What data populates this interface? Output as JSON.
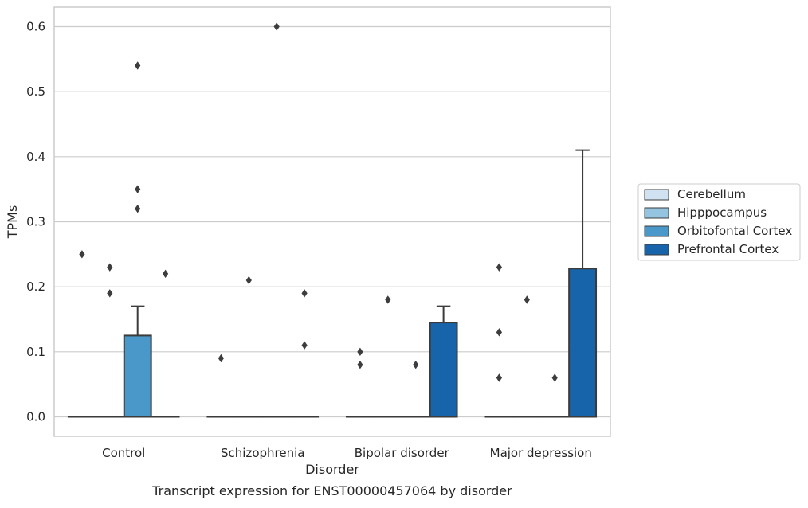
{
  "chart_data": {
    "type": "box",
    "xlabel": "Disorder",
    "ylabel": "TPMs",
    "caption": "Transcript expression for ENST00000457064 by disorder",
    "ylim": [
      -0.03,
      0.63
    ],
    "yticks": [
      0.0,
      0.1,
      0.2,
      0.3,
      0.4,
      0.5,
      0.6
    ],
    "ytick_labels": [
      "0.0",
      "0.1",
      "0.2",
      "0.3",
      "0.4",
      "0.5",
      "0.6"
    ],
    "grid": true,
    "legend_position": "right",
    "categories": [
      "Control",
      "Schizophrenia",
      "Bipolar disorder",
      "Major depression"
    ],
    "series": [
      {
        "name": "Cerebellum",
        "color": "#d0e1f2",
        "boxes": [
          {
            "q1": 0,
            "median": 0,
            "q3": 0,
            "whisker_low": 0,
            "whisker_high": 0,
            "outliers": [
              0.25
            ]
          },
          {
            "q1": 0,
            "median": 0,
            "q3": 0,
            "whisker_low": 0,
            "whisker_high": 0,
            "outliers": [
              0.09
            ]
          },
          {
            "q1": 0,
            "median": 0,
            "q3": 0,
            "whisker_low": 0,
            "whisker_high": 0,
            "outliers": [
              0.1,
              0.08
            ]
          },
          {
            "q1": 0,
            "median": 0,
            "q3": 0,
            "whisker_low": 0,
            "whisker_high": 0,
            "outliers": [
              0.23,
              0.13,
              0.06
            ]
          }
        ]
      },
      {
        "name": "Hipppocampus",
        "color": "#94c4df",
        "boxes": [
          {
            "q1": 0,
            "median": 0,
            "q3": 0,
            "whisker_low": 0,
            "whisker_high": 0,
            "outliers": [
              0.23,
              0.19
            ]
          },
          {
            "q1": 0,
            "median": 0,
            "q3": 0,
            "whisker_low": 0,
            "whisker_high": 0,
            "outliers": [
              0.21
            ]
          },
          {
            "q1": 0,
            "median": 0,
            "q3": 0,
            "whisker_low": 0,
            "whisker_high": 0,
            "outliers": [
              0.18
            ]
          },
          {
            "q1": 0,
            "median": 0,
            "q3": 0,
            "whisker_low": 0,
            "whisker_high": 0,
            "outliers": [
              0.18
            ]
          }
        ]
      },
      {
        "name": "Orbitofontal Cortex",
        "color": "#4a98c9",
        "boxes": [
          {
            "q1": 0,
            "median": 0,
            "q3": 0.125,
            "whisker_low": 0,
            "whisker_high": 0.17,
            "outliers": [
              0.54,
              0.35,
              0.32
            ]
          },
          {
            "q1": 0,
            "median": 0,
            "q3": 0,
            "whisker_low": 0,
            "whisker_high": 0,
            "outliers": [
              0.6
            ]
          },
          {
            "q1": 0,
            "median": 0,
            "q3": 0,
            "whisker_low": 0,
            "whisker_high": 0,
            "outliers": [
              0.08
            ]
          },
          {
            "q1": 0,
            "median": 0,
            "q3": 0,
            "whisker_low": 0,
            "whisker_high": 0,
            "outliers": [
              0.06
            ]
          }
        ]
      },
      {
        "name": "Prefrontal Cortex",
        "color": "#1764ab",
        "boxes": [
          {
            "q1": 0,
            "median": 0,
            "q3": 0,
            "whisker_low": 0,
            "whisker_high": 0,
            "outliers": [
              0.22
            ]
          },
          {
            "q1": 0,
            "median": 0,
            "q3": 0,
            "whisker_low": 0,
            "whisker_high": 0,
            "outliers": [
              0.19,
              0.11
            ]
          },
          {
            "q1": 0,
            "median": 0,
            "q3": 0.145,
            "whisker_low": 0,
            "whisker_high": 0.17,
            "outliers": []
          },
          {
            "q1": 0,
            "median": 0,
            "q3": 0.228,
            "whisker_low": 0,
            "whisker_high": 0.41,
            "outliers": []
          }
        ]
      }
    ]
  }
}
